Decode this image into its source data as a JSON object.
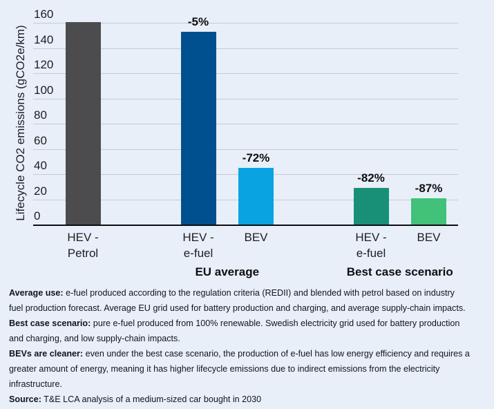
{
  "colors": {
    "background": "#e9eff8",
    "gridline": "#c5cad6",
    "axis": "#0c0d10",
    "bar_gray": "#4c4c4e",
    "bar_dark_blue": "#00508f",
    "bar_light_blue": "#0aa3e2",
    "bar_teal": "#189078",
    "bar_green": "#41c17a"
  },
  "chart_data": {
    "type": "bar",
    "title": "",
    "xlabel": "",
    "ylabel": "Lifecycle CO2 emissions (gCO2e/km)",
    "ylim": [
      0,
      160
    ],
    "yticks": [
      160,
      140,
      120,
      100,
      80,
      60,
      40,
      20,
      0
    ],
    "grid": "horizontal",
    "legend": "none",
    "categories": [
      "HEV -\nPetrol",
      "HEV -\ne-fuel",
      "BEV",
      "HEV -\ne-fuel",
      "BEV"
    ],
    "values": [
      161,
      153,
      45,
      29,
      21
    ],
    "bar_labels": [
      "",
      "-5%",
      "-72%",
      "-82%",
      "-87%"
    ],
    "bar_colors": [
      "#4c4c4e",
      "#00508f",
      "#0aa3e2",
      "#189078",
      "#41c17a"
    ],
    "groups": [
      {
        "label": "EU average",
        "bar_indexes": [
          1,
          2
        ]
      },
      {
        "label": "Best case scenario",
        "bar_indexes": [
          3,
          4
        ]
      }
    ]
  },
  "notes": {
    "lines": [
      {
        "bold": "Average use:",
        "text": " e-fuel produced according to the regulation criteria (REDII) and blended with petrol based on industry"
      },
      {
        "bold": "",
        "text": "fuel production forecast. Average EU grid used for battery production and charging, and average supply-chain impacts."
      },
      {
        "bold": "Best case scenario:",
        "text": " pure e-fuel produced from 100% renewable. Swedish electricity grid used for battery production"
      },
      {
        "bold": "",
        "text": "and charging, and low supply-chain impacts."
      },
      {
        "bold": "BEVs are cleaner:",
        "text": " even under the best case scenario, the production of e-fuel has low energy efficiency and requires a"
      },
      {
        "bold": "",
        "text": "greater amount of energy, meaning it has higher lifecycle emissions due to indirect emissions from the electricity"
      },
      {
        "bold": "",
        "text": "infrastructure."
      },
      {
        "bold": "Source:",
        "text": " T&E LCA analysis of a medium-sized car bought in 2030"
      }
    ]
  }
}
